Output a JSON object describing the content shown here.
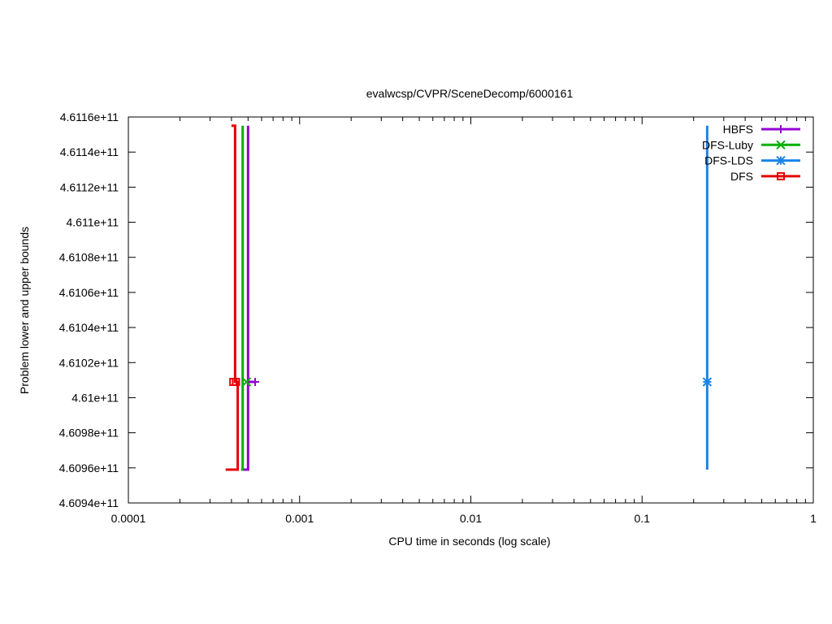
{
  "chart_data": {
    "type": "line",
    "title": "evalwcsp/CVPR/SceneDecomp/6000161",
    "xlabel": "CPU time in seconds (log scale)",
    "ylabel": "Problem lower and upper bounds",
    "xscale": "log",
    "xlim": [
      0.0001,
      1
    ],
    "ylim": [
      460940000000,
      461160000000
    ],
    "x_ticks": [
      0.0001,
      0.001,
      0.01,
      0.1,
      1
    ],
    "x_tick_labels": [
      "0.0001",
      "0.001",
      "0.01",
      "0.1",
      "1"
    ],
    "y_ticks": [
      460940000000,
      460960000000,
      460980000000,
      461000000000,
      461020000000,
      461040000000,
      461060000000,
      461080000000,
      461100000000,
      461120000000,
      461140000000,
      461160000000
    ],
    "y_tick_labels": [
      "4.6094e+11",
      "4.6096e+11",
      "4.6098e+11",
      "4.61e+11",
      "4.6102e+11",
      "4.6104e+11",
      "4.6106e+11",
      "4.6108e+11",
      "4.611e+11",
      "4.6112e+11",
      "4.6114e+11",
      "4.6116e+11"
    ],
    "grid": false,
    "legend_position": "top-right",
    "series": [
      {
        "name": "HBFS",
        "color": "#9400d3",
        "marker": "plus",
        "lower_bound": [
          [
            0.00046,
            460959000000
          ],
          [
            0.0005,
            460959000000
          ],
          [
            0.0005,
            461155000000
          ]
        ],
        "upper_bound": [
          [
            0.0005,
            461009000000
          ],
          [
            0.00055,
            461009000000
          ]
        ],
        "point": [
          0.00055,
          461009000000
        ]
      },
      {
        "name": "DFS-Luby",
        "color": "#00b000",
        "marker": "cross",
        "lower_bound": [
          [
            0.000455,
            460959000000
          ],
          [
            0.000465,
            460959000000
          ],
          [
            0.000465,
            461155000000
          ]
        ],
        "upper_bound": [],
        "point": [
          0.00049,
          461009000000
        ]
      },
      {
        "name": "DFS-LDS",
        "color": "#1a84e8",
        "marker": "star",
        "lower_bound": [
          [
            0.24,
            460959000000
          ],
          [
            0.24,
            461155000000
          ]
        ],
        "upper_bound": [],
        "point": [
          0.24,
          461009000000
        ]
      },
      {
        "name": "DFS",
        "color": "#e60000",
        "marker": "square",
        "lower_bound": [
          [
            0.00037,
            460959000000
          ],
          [
            0.000435,
            460959000000
          ],
          [
            0.000435,
            461009000000
          ],
          [
            0.00042,
            461009000000
          ],
          [
            0.00042,
            461155000000
          ],
          [
            0.0004,
            461155000000
          ]
        ],
        "upper_bound": [],
        "point": [
          0.00041,
          461009000000
        ],
        "point2": [
          0.000425,
          461009000000
        ]
      }
    ]
  }
}
